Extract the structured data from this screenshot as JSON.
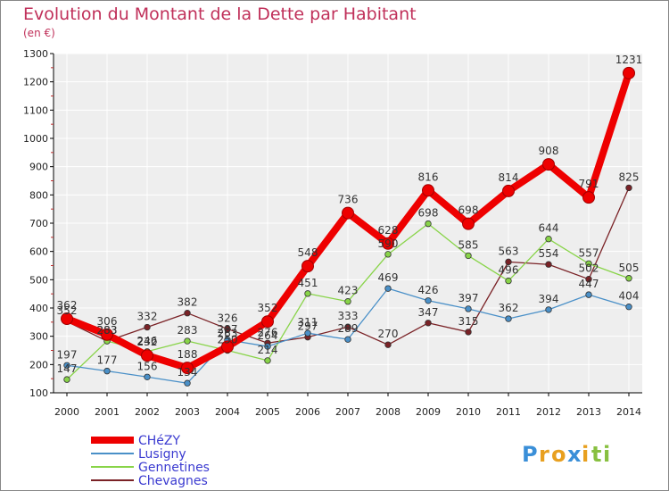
{
  "chart_data": {
    "type": "line",
    "title": "Evolution du Montant de la Dette par Habitant",
    "subtitle": "(en €)",
    "x": [
      "2000",
      "2001",
      "2002",
      "2003",
      "2004",
      "2005",
      "2006",
      "2007",
      "2008",
      "2009",
      "2010",
      "2011",
      "2012",
      "2013",
      "2014"
    ],
    "ylim": [
      100,
      1300
    ],
    "yticks": [
      100,
      200,
      300,
      400,
      500,
      600,
      700,
      800,
      900,
      1000,
      1100,
      1200,
      1300
    ],
    "grid": true,
    "legend_position": "bottom-left",
    "series": [
      {
        "name": "CHéZY",
        "color": "#ee0000",
        "values": [
          362,
          306,
          232,
          188,
          263,
          352,
          548,
          736,
          628,
          816,
          698,
          814,
          908,
          791,
          1231
        ]
      },
      {
        "name": "Lusigny",
        "color": "#4a90c8",
        "values": [
          197,
          177,
          156,
          134,
          287,
          264,
          311,
          289,
          469,
          426,
          397,
          362,
          394,
          447,
          404
        ]
      },
      {
        "name": "Gennetines",
        "color": "#88d448",
        "values": [
          147,
          283,
          246,
          283,
          250,
          214,
          451,
          423,
          590,
          698,
          585,
          496,
          644,
          557,
          505
        ]
      },
      {
        "name": "Chevagnes",
        "color": "#7a2226",
        "values": [
          352,
          283,
          332,
          382,
          326,
          276,
          297,
          333,
          270,
          347,
          315,
          563,
          554,
          502,
          825
        ]
      }
    ]
  },
  "brand": {
    "text": "Proxiti",
    "letters": [
      "P",
      "r",
      "o",
      "x",
      "i",
      "t",
      "i"
    ],
    "colors": [
      "#3a8fd8",
      "#e8a020",
      "#e8a020",
      "#3a8fd8",
      "#e8a020",
      "#88c040",
      "#88c040"
    ]
  }
}
